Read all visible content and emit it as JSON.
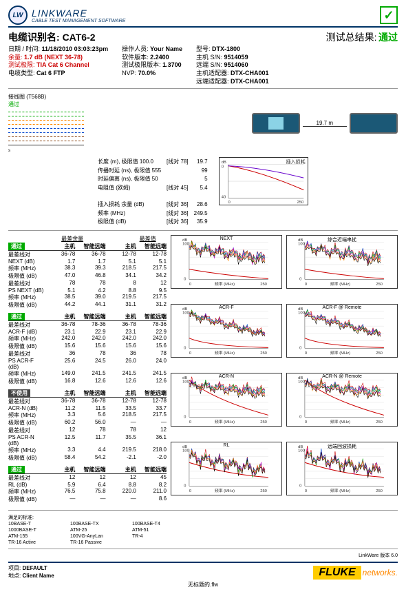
{
  "brand": "LINKWARE",
  "brand_sub": "CABLE TEST MANAGEMENT SOFTWARE",
  "cable_id_label": "电缆识别名:",
  "cable_id": "CAT6-2",
  "result_label": "测试总结果:",
  "result_value": "通过",
  "meta_left": {
    "datetime_label": "日期 / 时间:",
    "datetime": "11/18/2010 03:03:23pm",
    "headroom_label": "余量:",
    "headroom": "1.7 dB (NEXT 36-78)",
    "limit_label": "测试极限:",
    "limit": "TIA Cat 6 Channel",
    "cabletype_label": "电缆类型:",
    "cabletype": "Cat 6 FTP"
  },
  "meta_mid": {
    "operator_label": "操作人员:",
    "operator": "Your Name",
    "swver_label": "软件版本:",
    "swver": "2.2400",
    "limver_label": "测试极限版本:",
    "limver": "1.3700",
    "nvp_label": "NVP:",
    "nvp": "70.0%"
  },
  "meta_right": {
    "model_label": "型号:",
    "model": "DTX-1800",
    "mainsn_label": "主机 S/N:",
    "mainsn": "9514059",
    "remotesn_label": "远端 S/N:",
    "remotesn": "9514060",
    "mainadp_label": "主机适配器:",
    "mainadp": "DTX-CHA001",
    "remadp_label": "远端适配器:",
    "remadp": "DTX-CHA001"
  },
  "wiremap": {
    "title": "接线图",
    "std": "(T568B)",
    "pass": "通过",
    "colors": [
      "#00aa00",
      "#ff8800",
      "#0044cc",
      "#8b4513"
    ]
  },
  "cable_length": "19.7 m",
  "measurements": {
    "rows": [
      {
        "l": "长度 (m), 极限值 100.0",
        "p": "[线对 78]",
        "v": "19.7"
      },
      {
        "l": "传播时延 (ns), 极限值 555",
        "p": "",
        "v": "99"
      },
      {
        "l": "时延偏离 (ns), 极限值 50",
        "p": "",
        "v": "5"
      },
      {
        "l": "电阻值 (欧姆)",
        "p": "[线对 45]",
        "v": "5.4"
      }
    ],
    "il_title": "插入损耗 余量 (dB)",
    "il_rows": [
      {
        "p": "[线对 36]",
        "v": "28.6"
      },
      {
        "l": "频率 (MHz)",
        "p": "[线对 36]",
        "v": "249.5"
      },
      {
        "l": "极限值 (dB)",
        "p": "[线对 36]",
        "v": "35.9"
      }
    ]
  },
  "il_chart": {
    "title": "插入损耗",
    "ylim": [
      0,
      40
    ],
    "xlim": [
      0,
      250
    ],
    "ytick": 20,
    "colors": [
      "#cc0000",
      "#6600cc"
    ],
    "bg": "#ffffff"
  },
  "tables": [
    {
      "pass": "通过",
      "head": [
        "",
        "主机",
        "智能远端",
        "主机",
        "智能远端"
      ],
      "pre": {
        "l": "最差余量",
        "r": "最差值"
      },
      "rows": [
        [
          "最差线对",
          "36-78",
          "36-78",
          "12-78",
          "12-78"
        ],
        [
          "NEXT (dB)",
          "1.7",
          "1.7",
          "5.1",
          "5.1"
        ],
        [
          "频率 (MHz)",
          "38.3",
          "39.3",
          "218.5",
          "217.5"
        ],
        [
          "极限值 (dB)",
          "47.0",
          "46.8",
          "34.1",
          "34.2"
        ],
        [
          "最差线对",
          "78",
          "78",
          "8",
          "12"
        ],
        [
          "PS NEXT (dB)",
          "5.1",
          "4.2",
          "8.8",
          "9.5"
        ],
        [
          "频率 (MHz)",
          "38.5",
          "39.0",
          "219.5",
          "217.5"
        ],
        [
          "极限值 (dB)",
          "44.2",
          "44.1",
          "31.1",
          "31.2"
        ]
      ]
    },
    {
      "pass": "通过",
      "head": [
        "",
        "主机",
        "智能远端",
        "主机",
        "智能远端"
      ],
      "rows": [
        [
          "最差线对",
          "36-78",
          "78-36",
          "36-78",
          "78-36"
        ],
        [
          "ACR-F (dB)",
          "23.1",
          "22.9",
          "23.1",
          "22.9"
        ],
        [
          "频率 (MHz)",
          "242.0",
          "242.0",
          "242.0",
          "242.0"
        ],
        [
          "极限值 (dB)",
          "15.6",
          "15.6",
          "15.6",
          "15.6"
        ],
        [
          "最差线对",
          "36",
          "78",
          "36",
          "78"
        ],
        [
          "PS ACR-F (dB)",
          "25.6",
          "24.5",
          "26.0",
          "24.0"
        ],
        [
          "频率 (MHz)",
          "149.0",
          "241.5",
          "241.5",
          "241.5"
        ],
        [
          "极限值 (dB)",
          "16.8",
          "12.6",
          "12.6",
          "12.6"
        ]
      ]
    },
    {
      "pass": "不使用",
      "head": [
        "",
        "主机",
        "智能远端",
        "主机",
        "智能远端"
      ],
      "rows": [
        [
          "最差线对",
          "36-78",
          "36-78",
          "12-78",
          "12-78"
        ],
        [
          "ACR-N (dB)",
          "11.2",
          "11.5",
          "33.5",
          "33.7"
        ],
        [
          "频率 (MHz)",
          "3.3",
          "5.6",
          "218.5",
          "217.5"
        ],
        [
          "极限值 (dB)",
          "60.2",
          "56.0",
          "—",
          "—"
        ],
        [
          "最差线对",
          "12",
          "78",
          "78",
          "12"
        ],
        [
          "PS ACR-N (dB)",
          "12.5",
          "11.7",
          "35.5",
          "36.1"
        ],
        [
          "频率 (MHz)",
          "3.3",
          "4.4",
          "219.5",
          "218.0"
        ],
        [
          "极限值 (dB)",
          "58.4",
          "54.2",
          "-2.1",
          "-2.0"
        ]
      ]
    },
    {
      "pass": "通过",
      "head": [
        "",
        "主机",
        "智能远端",
        "主机",
        "智能远端"
      ],
      "rows": [
        [
          "最差线对",
          "12",
          "12",
          "12",
          "45"
        ],
        [
          "RL (dB)",
          "5.9",
          "6.4",
          "8.8",
          "8.2"
        ],
        [
          "频率 (MHz)",
          "76.5",
          "75.8",
          "220.0",
          "211.0"
        ],
        [
          "极限值 (dB)",
          "—",
          "—",
          "—",
          "8.6"
        ]
      ]
    }
  ],
  "charts": [
    {
      "title": "NEXT",
      "type": "noise"
    },
    {
      "title": "综合近端串扰",
      "type": "noise"
    },
    {
      "title": "ACR-F",
      "type": "decay"
    },
    {
      "title": "ACR-F @ Remote",
      "type": "decay"
    },
    {
      "title": "ACR-N",
      "type": "acrn"
    },
    {
      "title": "ACR-N @ Remote",
      "type": "acrn"
    },
    {
      "title": "RL",
      "type": "rl"
    },
    {
      "title": "远端回波损耗",
      "type": "rl"
    }
  ],
  "chart_style": {
    "colors": [
      "#cc0000",
      "#0044cc",
      "#00aa00",
      "#cc00cc",
      "#ff8800",
      "#000000"
    ],
    "limit_color": "#cc0000",
    "ylabel": "dB",
    "xlabel": "频率 (MHz)",
    "xlim": [
      0,
      250
    ],
    "ylim": [
      0,
      100
    ],
    "ytick": 20,
    "xtick": 125,
    "bg": "#ffffff",
    "grid": "#cccccc"
  },
  "compliance": {
    "title": "满足的标准:",
    "rows": [
      [
        "10BASE-T",
        "100BASE-TX",
        "100BASE-T4"
      ],
      [
        "1000BASE-T",
        "ATM-25",
        "ATM-51"
      ],
      [
        "ATM-155",
        "100VG-AnyLan",
        "TR-4"
      ],
      [
        "TR-16 Active",
        "TR-16 Passive",
        ""
      ]
    ]
  },
  "footer": {
    "project_label": "项目:",
    "project": "DEFAULT",
    "site_label": "地点:",
    "site": "Client Name",
    "sw_note": "LinkWare 版本 6.0",
    "filename": "无标题的.flw",
    "fluke": "FLUKE",
    "fluke_sub": "networks."
  }
}
